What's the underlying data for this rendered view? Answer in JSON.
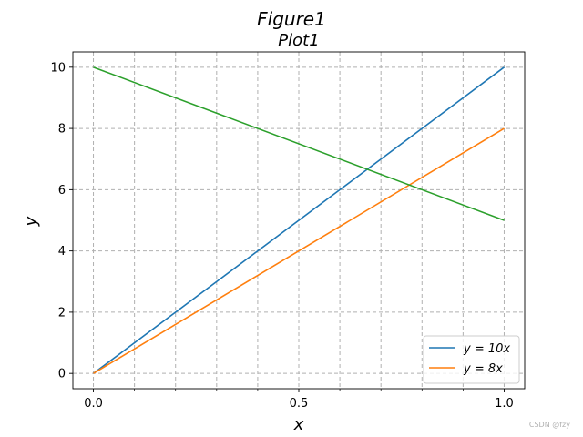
{
  "figure_title": "Figure1",
  "watermark": "CSDN @fzy",
  "chart_data": {
    "type": "line",
    "title": "Plot1",
    "xlabel": "x",
    "ylabel": "y",
    "xlim": [
      -0.05,
      1.05
    ],
    "ylim": [
      -0.5,
      10.5
    ],
    "xticks": [
      0.0,
      0.5,
      1.0
    ],
    "xtick_labels": [
      "0.0",
      "0.5",
      "1.0"
    ],
    "xminor_ticks": [
      0.1,
      0.2,
      0.3,
      0.4,
      0.6,
      0.7,
      0.8,
      0.9
    ],
    "yticks": [
      0,
      2,
      4,
      6,
      8,
      10
    ],
    "ytick_labels": [
      "0",
      "2",
      "4",
      "6",
      "8",
      "10"
    ],
    "grid": true,
    "grid_style": "dashed",
    "legend_position": "bottom-right",
    "series": [
      {
        "name": "y = 10x",
        "color": "#1f77b4",
        "x": [
          0,
          1
        ],
        "y": [
          0,
          10
        ],
        "in_legend": true
      },
      {
        "name": "y = 8x",
        "color": "#ff7f0e",
        "x": [
          0,
          1
        ],
        "y": [
          0,
          8
        ],
        "in_legend": true
      },
      {
        "name": "",
        "color": "#2ca02c",
        "x": [
          0,
          1
        ],
        "y": [
          10,
          5
        ],
        "in_legend": false
      }
    ]
  }
}
